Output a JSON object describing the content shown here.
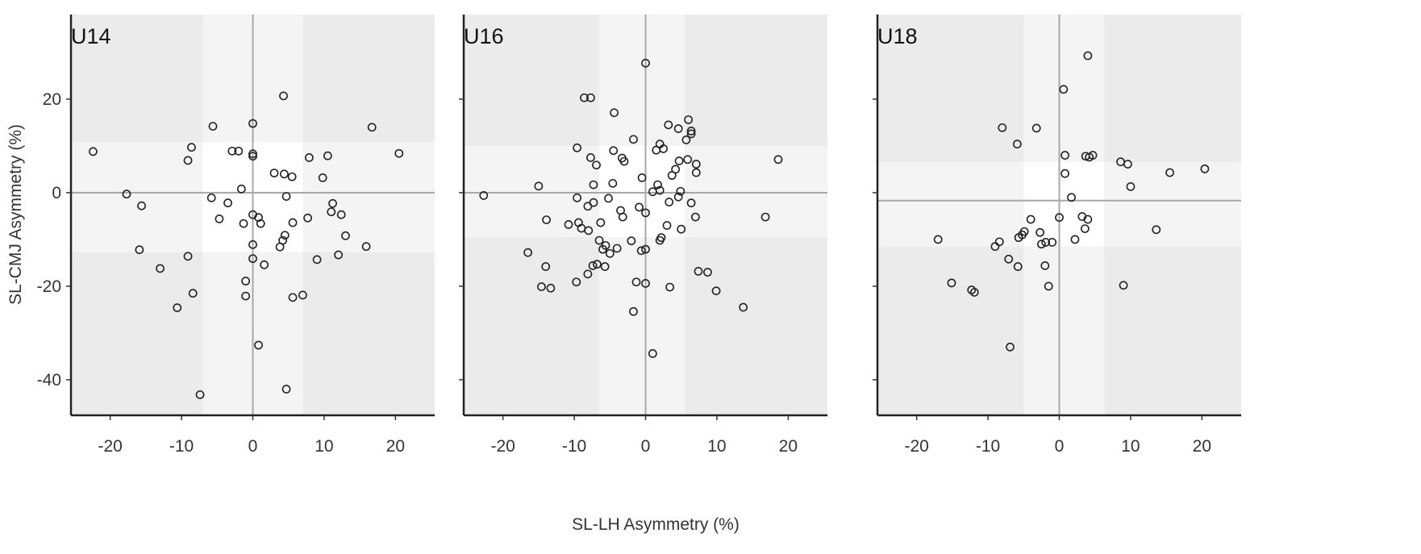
{
  "chart_data": {
    "type": "scatter",
    "xlabel": "SL-LH Asymmetry (%)",
    "ylabel": "SL-CMJ Asymmetry (%)",
    "xlim": [
      -25.5,
      25.5
    ],
    "ylim": [
      -47.6,
      38.1
    ],
    "xticks": [
      -20,
      -10,
      0,
      10,
      20
    ],
    "yticks": [
      20,
      0,
      -20,
      -40
    ],
    "xtick_labels": [
      "-20",
      "-10",
      "0",
      "10",
      "20"
    ],
    "ytick_labels": [
      "20",
      "0",
      "-20",
      "-40"
    ],
    "colors": {
      "outer": "#ebebeb",
      "edge": "#f4f4f4",
      "center": "#ffffff",
      "refline": "#a8a8a8",
      "point": "#222222"
    },
    "panels": [
      {
        "title": "U14",
        "band_x": [
          -7,
          7
        ],
        "band_y": [
          -12.7,
          10.8
        ],
        "hline": 0,
        "vline": 0,
        "points": [
          [
            -22.4,
            8.8
          ],
          [
            -17.7,
            -0.3
          ],
          [
            -15.6,
            -2.8
          ],
          [
            -15.9,
            -12.2
          ],
          [
            -13,
            -16.2
          ],
          [
            -10.6,
            -24.6
          ],
          [
            -8.4,
            -21.5
          ],
          [
            -9.1,
            -13.6
          ],
          [
            -9.1,
            6.9
          ],
          [
            -8.6,
            9.7
          ],
          [
            -7.4,
            -43.2
          ],
          [
            -5.6,
            14.2
          ],
          [
            -5.8,
            -1.1
          ],
          [
            -4.7,
            -5.6
          ],
          [
            -3.5,
            -2.2
          ],
          [
            -2.9,
            8.9
          ],
          [
            -2.0,
            8.9
          ],
          [
            -1.6,
            0.8
          ],
          [
            -1.3,
            -6.6
          ],
          [
            -1.0,
            -18.9
          ],
          [
            -1.0,
            -22.1
          ],
          [
            0,
            14.8
          ],
          [
            0,
            8.3
          ],
          [
            0,
            7.8
          ],
          [
            0,
            -4.7
          ],
          [
            0,
            -11.1
          ],
          [
            0,
            -14.1
          ],
          [
            0.8,
            -5.3
          ],
          [
            1.1,
            -6.6
          ],
          [
            0.8,
            -32.6
          ],
          [
            1.6,
            -15.4
          ],
          [
            3.0,
            4.2
          ],
          [
            3.8,
            -11.6
          ],
          [
            4.2,
            -10.2
          ],
          [
            4.5,
            -9.1
          ],
          [
            4.3,
            20.7
          ],
          [
            4.4,
            4.0
          ],
          [
            4.7,
            -0.8
          ],
          [
            5.5,
            3.4
          ],
          [
            5.6,
            -6.4
          ],
          [
            5.6,
            -22.4
          ],
          [
            4.7,
            -42.0
          ],
          [
            7.0,
            -21.9
          ],
          [
            7.7,
            -5.4
          ],
          [
            7.9,
            7.5
          ],
          [
            9.0,
            -14.3
          ],
          [
            9.8,
            3.2
          ],
          [
            10.5,
            7.9
          ],
          [
            11.2,
            -2.3
          ],
          [
            11.0,
            -4.1
          ],
          [
            12.0,
            -13.3
          ],
          [
            12.4,
            -4.7
          ],
          [
            13.0,
            -9.2
          ],
          [
            15.9,
            -11.5
          ],
          [
            16.7,
            14.0
          ],
          [
            20.5,
            8.4
          ]
        ]
      },
      {
        "title": "U16",
        "band_x": [
          -6.5,
          5.5
        ],
        "band_y": [
          -9.5,
          10
        ],
        "hline": 0,
        "vline": 0,
        "points": [
          [
            -22.7,
            -0.6
          ],
          [
            -16.5,
            -12.8
          ],
          [
            -15.0,
            1.4
          ],
          [
            -14.6,
            -20.1
          ],
          [
            -14.0,
            -15.8
          ],
          [
            -13.9,
            -5.8
          ],
          [
            -13.3,
            -20.4
          ],
          [
            -10.8,
            -6.8
          ],
          [
            -9.7,
            -19.1
          ],
          [
            -9.6,
            9.6
          ],
          [
            -9.6,
            -1.1
          ],
          [
            -9.4,
            -6.4
          ],
          [
            -9,
            -7.6
          ],
          [
            -8.6,
            20.3
          ],
          [
            -8.1,
            -2.9
          ],
          [
            -8.1,
            -17.4
          ],
          [
            -8.0,
            -8.1
          ],
          [
            -7.7,
            20.3
          ],
          [
            -7.7,
            7.5
          ],
          [
            -7.4,
            -15.6
          ],
          [
            -7.3,
            -2.1
          ],
          [
            -7.3,
            1.7
          ],
          [
            -6.9,
            5.9
          ],
          [
            -6.8,
            -15.3
          ],
          [
            -6.5,
            -10.2
          ],
          [
            -6.3,
            -6.4
          ],
          [
            -6.0,
            -12.1
          ],
          [
            -5.7,
            -15.8
          ],
          [
            -5.6,
            -11.3
          ],
          [
            -5.2,
            -1.2
          ],
          [
            -5.0,
            -13.0
          ],
          [
            -4.6,
            2.0
          ],
          [
            -4.5,
            9.0
          ],
          [
            -4.4,
            17.1
          ],
          [
            -4.0,
            -11.9
          ],
          [
            -3.5,
            -3.8
          ],
          [
            -3.2,
            -5.2
          ],
          [
            -3.3,
            7.4
          ],
          [
            -3.0,
            6.7
          ],
          [
            -2.0,
            -10.3
          ],
          [
            -1.7,
            11.4
          ],
          [
            -1.7,
            -25.4
          ],
          [
            -1.3,
            -19.1
          ],
          [
            -0.9,
            -3.1
          ],
          [
            -0.6,
            -12.4
          ],
          [
            -0.5,
            3.2
          ],
          [
            0,
            27.7
          ],
          [
            0,
            -12.1
          ],
          [
            0,
            -19.4
          ],
          [
            0,
            -4.3
          ],
          [
            1.0,
            -34.4
          ],
          [
            1.0,
            0.2
          ],
          [
            1.5,
            9.1
          ],
          [
            1.7,
            1.7
          ],
          [
            2.0,
            10.4
          ],
          [
            2.0,
            0.5
          ],
          [
            2.0,
            -10.2
          ],
          [
            2.2,
            -9.6
          ],
          [
            2.5,
            9.4
          ],
          [
            3.0,
            -7.0
          ],
          [
            3.2,
            14.5
          ],
          [
            3.3,
            -2.0
          ],
          [
            3.4,
            -20.2
          ],
          [
            3.7,
            3.7
          ],
          [
            4.2,
            5.0
          ],
          [
            4.6,
            -0.9
          ],
          [
            4.6,
            13.7
          ],
          [
            4.7,
            6.8
          ],
          [
            4.9,
            0.3
          ],
          [
            5.0,
            -7.8
          ],
          [
            5.9,
            7.1
          ],
          [
            5.7,
            11.3
          ],
          [
            6.0,
            15.6
          ],
          [
            6.4,
            13.2
          ],
          [
            6.4,
            12.6
          ],
          [
            6.4,
            -2.2
          ],
          [
            7.0,
            -5.2
          ],
          [
            7.1,
            6.1
          ],
          [
            7.1,
            4.3
          ],
          [
            7.4,
            -16.8
          ],
          [
            8.7,
            -17.0
          ],
          [
            9.9,
            -21.0
          ],
          [
            13.7,
            -24.5
          ],
          [
            16.8,
            -5.2
          ],
          [
            18.6,
            7.1
          ]
        ]
      },
      {
        "title": "U18",
        "band_x": [
          -5,
          6.3
        ],
        "band_y": [
          -11.5,
          6.5
        ],
        "hline": -1.7,
        "vline": 0,
        "points": [
          [
            -17.0,
            -10.0
          ],
          [
            -15.1,
            -19.3
          ],
          [
            -12.3,
            -20.8
          ],
          [
            -11.9,
            -21.3
          ],
          [
            -9.0,
            -11.5
          ],
          [
            -8.4,
            -10.5
          ],
          [
            -8.0,
            13.9
          ],
          [
            -7.1,
            -14.2
          ],
          [
            -6.9,
            -33.0
          ],
          [
            -5.9,
            10.4
          ],
          [
            -5.8,
            -15.8
          ],
          [
            -5.7,
            -9.6
          ],
          [
            -5.2,
            -9.0
          ],
          [
            -4.9,
            -8.3
          ],
          [
            -4.0,
            -5.7
          ],
          [
            -3.2,
            13.8
          ],
          [
            -2.7,
            -8.5
          ],
          [
            -2.5,
            -11.0
          ],
          [
            -2.0,
            -15.6
          ],
          [
            -1.9,
            -10.6
          ],
          [
            -1.5,
            -20.0
          ],
          [
            -1.0,
            -10.6
          ],
          [
            0.0,
            -5.3
          ],
          [
            0.6,
            22.1
          ],
          [
            0.8,
            8.0
          ],
          [
            0.8,
            4.1
          ],
          [
            1.7,
            -1.0
          ],
          [
            2.2,
            -10.0
          ],
          [
            3.2,
            -5.1
          ],
          [
            3.7,
            7.8
          ],
          [
            3.6,
            -7.7
          ],
          [
            4.0,
            -5.7
          ],
          [
            4.2,
            7.6
          ],
          [
            4.0,
            29.3
          ],
          [
            4.7,
            8.0
          ],
          [
            8.6,
            6.6
          ],
          [
            9.0,
            -19.8
          ],
          [
            9.6,
            6.1
          ],
          [
            10.0,
            1.3
          ],
          [
            13.6,
            -7.9
          ],
          [
            15.5,
            4.3
          ],
          [
            20.4,
            5.1
          ]
        ]
      }
    ]
  }
}
